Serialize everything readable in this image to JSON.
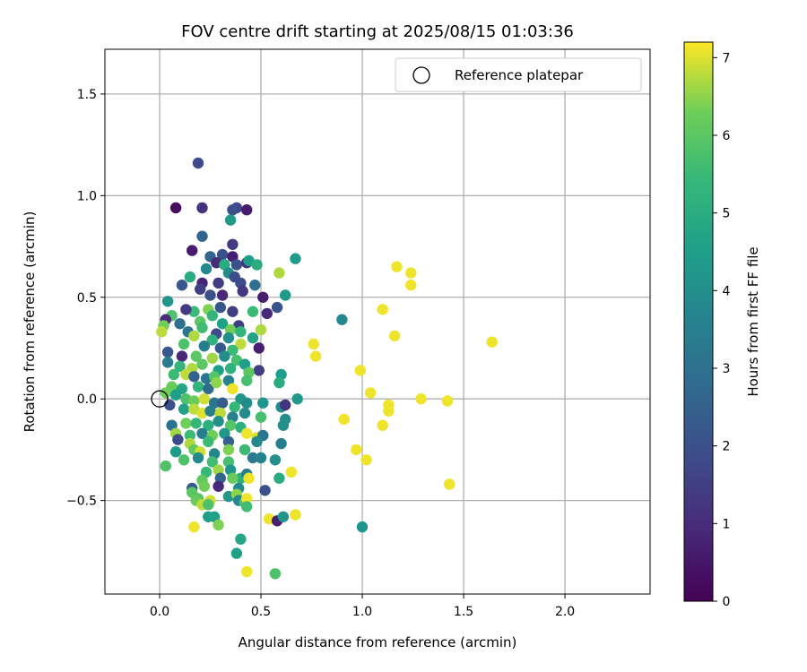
{
  "chart_data": {
    "type": "scatter",
    "title": "FOV centre drift starting at 2025/08/15 01:03:36",
    "xlabel": "Angular distance from reference (arcmin)",
    "ylabel": "Rotation from reference (arcmin)",
    "xlim": [
      -0.27,
      2.42
    ],
    "ylim": [
      -0.96,
      1.72
    ],
    "xticks": [
      0.0,
      0.5,
      1.0,
      1.5,
      2.0
    ],
    "xtick_labels": [
      "0.0",
      "0.5",
      "1.0",
      "1.5",
      "2.0"
    ],
    "yticks": [
      -0.5,
      0.0,
      0.5,
      1.0,
      1.5
    ],
    "ytick_labels": [
      "−0.5",
      "0.0",
      "0.5",
      "1.0",
      "1.5"
    ],
    "grid": true,
    "legend": {
      "placement": "top-right",
      "entries": [
        "Reference platepar"
      ]
    },
    "reference_point": {
      "x": 0.0,
      "y": 0.0,
      "label": "Reference platepar"
    },
    "colorbar": {
      "label": "Hours from first FF file",
      "colormap": "viridis",
      "range": [
        0,
        7.2
      ],
      "ticks": [
        0,
        1,
        2,
        3,
        4,
        5,
        6,
        7
      ],
      "tick_labels": [
        "0",
        "1",
        "2",
        "3",
        "4",
        "5",
        "6",
        "7"
      ]
    },
    "points": [
      [
        0.19,
        1.16,
        1.8
      ],
      [
        0.08,
        0.94,
        0.3
      ],
      [
        0.21,
        0.94,
        1.2
      ],
      [
        0.38,
        0.94,
        1.8
      ],
      [
        0.36,
        0.93,
        2.0
      ],
      [
        0.43,
        0.93,
        0.6
      ],
      [
        0.35,
        0.88,
        4.3
      ],
      [
        0.21,
        0.8,
        2.6
      ],
      [
        0.16,
        0.73,
        0.6
      ],
      [
        0.36,
        0.76,
        1.4
      ],
      [
        0.31,
        0.71,
        2.0
      ],
      [
        0.25,
        0.7,
        2.6
      ],
      [
        0.36,
        0.7,
        0.7
      ],
      [
        0.67,
        0.69,
        4.4
      ],
      [
        0.28,
        0.67,
        1.0
      ],
      [
        0.38,
        0.66,
        2.0
      ],
      [
        0.32,
        0.66,
        5.0
      ],
      [
        0.43,
        0.67,
        1.2
      ],
      [
        0.44,
        0.68,
        4.5
      ],
      [
        0.48,
        0.66,
        5.0
      ],
      [
        0.23,
        0.64,
        3.8
      ],
      [
        0.59,
        0.62,
        6.7
      ],
      [
        0.15,
        0.6,
        5.0
      ],
      [
        0.34,
        0.62,
        3.9
      ],
      [
        0.37,
        0.6,
        1.9
      ],
      [
        0.21,
        0.57,
        0.8
      ],
      [
        0.29,
        0.57,
        1.4
      ],
      [
        0.11,
        0.56,
        2.2
      ],
      [
        0.2,
        0.54,
        1.5
      ],
      [
        0.4,
        0.57,
        1.8
      ],
      [
        0.47,
        0.56,
        3.0
      ],
      [
        0.62,
        0.51,
        4.4
      ],
      [
        0.25,
        0.51,
        2.0
      ],
      [
        0.31,
        0.51,
        0.9
      ],
      [
        0.41,
        0.53,
        1.3
      ],
      [
        0.51,
        0.5,
        0.7
      ],
      [
        0.04,
        0.48,
        4.2
      ],
      [
        0.17,
        0.43,
        5.5
      ],
      [
        0.24,
        0.44,
        6.4
      ],
      [
        0.3,
        0.45,
        2.2
      ],
      [
        0.36,
        0.43,
        1.5
      ],
      [
        0.53,
        0.42,
        0.9
      ],
      [
        0.58,
        0.45,
        2.1
      ],
      [
        0.46,
        0.43,
        5.5
      ],
      [
        0.06,
        0.41,
        5.8
      ],
      [
        0.03,
        0.39,
        1.0
      ],
      [
        0.13,
        0.44,
        1.4
      ],
      [
        0.26,
        0.41,
        5.3
      ],
      [
        0.1,
        0.37,
        3.0
      ],
      [
        0.2,
        0.38,
        6.0
      ],
      [
        0.31,
        0.37,
        4.6
      ],
      [
        0.39,
        0.36,
        1.5
      ],
      [
        0.02,
        0.36,
        6.3
      ],
      [
        0.01,
        0.33,
        6.8
      ],
      [
        0.14,
        0.33,
        3.2
      ],
      [
        0.21,
        0.35,
        5.6
      ],
      [
        0.28,
        0.32,
        1.8
      ],
      [
        0.35,
        0.34,
        6.3
      ],
      [
        0.4,
        0.33,
        5.3
      ],
      [
        0.5,
        0.34,
        6.7
      ],
      [
        0.9,
        0.39,
        3.8
      ],
      [
        0.17,
        0.31,
        6.7
      ],
      [
        0.26,
        0.29,
        5.2
      ],
      [
        0.34,
        0.3,
        4.0
      ],
      [
        0.4,
        0.27,
        6.8
      ],
      [
        0.46,
        0.3,
        4.7
      ],
      [
        0.49,
        0.25,
        0.7
      ],
      [
        0.12,
        0.27,
        5.8
      ],
      [
        0.22,
        0.26,
        3.5
      ],
      [
        0.3,
        0.25,
        2.2
      ],
      [
        0.36,
        0.24,
        5.5
      ],
      [
        0.76,
        0.27,
        7.1
      ],
      [
        0.77,
        0.21,
        7.1
      ],
      [
        1.1,
        0.44,
        7.1
      ],
      [
        1.17,
        0.65,
        7.1
      ],
      [
        1.24,
        0.62,
        7.1
      ],
      [
        1.24,
        0.56,
        7.1
      ],
      [
        1.16,
        0.31,
        7.1
      ],
      [
        1.64,
        0.28,
        7.1
      ],
      [
        0.04,
        0.23,
        2.2
      ],
      [
        0.11,
        0.21,
        0.9
      ],
      [
        0.18,
        0.21,
        6.0
      ],
      [
        0.26,
        0.2,
        6.6
      ],
      [
        0.32,
        0.21,
        4.0
      ],
      [
        0.38,
        0.19,
        5.7
      ],
      [
        0.42,
        0.17,
        4.5
      ],
      [
        0.49,
        0.14,
        1.5
      ],
      [
        0.04,
        0.18,
        3.4
      ],
      [
        0.1,
        0.16,
        5.3
      ],
      [
        0.16,
        0.15,
        6.7
      ],
      [
        0.21,
        0.17,
        6.0
      ],
      [
        0.29,
        0.14,
        4.5
      ],
      [
        0.35,
        0.15,
        5.2
      ],
      [
        0.44,
        0.13,
        6.0
      ],
      [
        0.6,
        0.12,
        4.5
      ],
      [
        0.99,
        0.14,
        7.1
      ],
      [
        0.07,
        0.12,
        5.5
      ],
      [
        0.13,
        0.12,
        6.8
      ],
      [
        0.17,
        0.11,
        2.5
      ],
      [
        0.23,
        0.1,
        3.2
      ],
      [
        0.27,
        0.11,
        5.9
      ],
      [
        0.34,
        0.09,
        3.6
      ],
      [
        0.43,
        0.09,
        5.7
      ],
      [
        0.59,
        0.08,
        5.0
      ],
      [
        0.06,
        0.06,
        6.2
      ],
      [
        0.11,
        0.05,
        4.8
      ],
      [
        0.19,
        0.06,
        5.3
      ],
      [
        0.24,
        0.05,
        2.8
      ],
      [
        0.28,
        0.08,
        6.5
      ],
      [
        0.36,
        0.05,
        7.1
      ],
      [
        0.4,
        0.0,
        4.3
      ],
      [
        0.51,
        -0.02,
        4.2
      ],
      [
        0.68,
        0.0,
        4.3
      ],
      [
        1.04,
        0.03,
        7.1
      ],
      [
        1.29,
        0.0,
        7.1
      ],
      [
        1.42,
        -0.01,
        7.1
      ],
      [
        0.03,
        0.03,
        6.3
      ],
      [
        0.08,
        0.02,
        4.5
      ],
      [
        0.13,
        0.0,
        5.8
      ],
      [
        0.17,
        -0.01,
        6.2
      ],
      [
        0.22,
        0.0,
        6.9
      ],
      [
        0.27,
        -0.02,
        3.2
      ],
      [
        0.31,
        -0.02,
        2.3
      ],
      [
        0.37,
        -0.04,
        5.4
      ],
      [
        0.43,
        -0.02,
        3.9
      ],
      [
        0.6,
        -0.04,
        4.0
      ],
      [
        0.62,
        -0.03,
        1.2
      ],
      [
        1.13,
        -0.03,
        7.1
      ],
      [
        1.13,
        -0.06,
        7.1
      ],
      [
        0.05,
        -0.03,
        2.0
      ],
      [
        0.12,
        -0.05,
        4.6
      ],
      [
        0.17,
        -0.05,
        6.8
      ],
      [
        0.21,
        -0.07,
        7.0
      ],
      [
        0.25,
        -0.06,
        3.5
      ],
      [
        0.3,
        -0.07,
        6.8
      ],
      [
        0.36,
        -0.09,
        3.5
      ],
      [
        0.42,
        -0.07,
        3.9
      ],
      [
        0.5,
        -0.09,
        5.7
      ],
      [
        0.62,
        -0.1,
        4.0
      ],
      [
        0.91,
        -0.1,
        7.1
      ],
      [
        0.06,
        -0.13,
        3.0
      ],
      [
        0.13,
        -0.12,
        6.3
      ],
      [
        0.18,
        -0.12,
        5.4
      ],
      [
        0.24,
        -0.13,
        5.1
      ],
      [
        0.29,
        -0.11,
        4.0
      ],
      [
        0.35,
        -0.13,
        5.9
      ],
      [
        0.4,
        -0.14,
        5.1
      ],
      [
        0.61,
        -0.13,
        4.0
      ],
      [
        1.1,
        -0.13,
        7.1
      ],
      [
        0.08,
        -0.17,
        6.6
      ],
      [
        0.15,
        -0.18,
        5.5
      ],
      [
        0.21,
        -0.17,
        3.5
      ],
      [
        0.26,
        -0.18,
        6.3
      ],
      [
        0.32,
        -0.17,
        4.3
      ],
      [
        0.43,
        -0.17,
        7.1
      ],
      [
        0.48,
        -0.19,
        7.0
      ],
      [
        0.51,
        -0.18,
        3.2
      ],
      [
        0.09,
        -0.2,
        1.8
      ],
      [
        0.15,
        -0.22,
        6.7
      ],
      [
        0.24,
        -0.21,
        5.5
      ],
      [
        0.34,
        -0.21,
        2.5
      ],
      [
        0.48,
        -0.21,
        3.8
      ],
      [
        0.6,
        -0.22,
        3.5
      ],
      [
        0.97,
        -0.25,
        7.1
      ],
      [
        0.08,
        -0.26,
        4.4
      ],
      [
        0.17,
        -0.25,
        6.1
      ],
      [
        0.2,
        -0.26,
        6.9
      ],
      [
        0.27,
        -0.27,
        3.7
      ],
      [
        0.34,
        -0.25,
        6.4
      ],
      [
        0.42,
        -0.25,
        5.5
      ],
      [
        0.12,
        -0.3,
        5.8
      ],
      [
        0.19,
        -0.29,
        3.8
      ],
      [
        0.26,
        -0.31,
        5.6
      ],
      [
        0.34,
        -0.31,
        5.7
      ],
      [
        0.46,
        -0.29,
        3.3
      ],
      [
        0.5,
        -0.29,
        3.6
      ],
      [
        0.57,
        -0.3,
        4.0
      ],
      [
        0.03,
        -0.33,
        5.8
      ],
      [
        1.02,
        -0.3,
        7.1
      ],
      [
        0.23,
        -0.36,
        5.4
      ],
      [
        0.29,
        -0.35,
        6.6
      ],
      [
        0.35,
        -0.35,
        4.2
      ],
      [
        0.4,
        -0.39,
        5.1
      ],
      [
        0.43,
        -0.37,
        3.5
      ],
      [
        0.59,
        -0.39,
        5.0
      ],
      [
        0.65,
        -0.36,
        7.1
      ],
      [
        0.21,
        -0.4,
        6.1
      ],
      [
        0.3,
        -0.39,
        2.6
      ],
      [
        0.36,
        -0.39,
        6.2
      ],
      [
        0.44,
        -0.39,
        7.1
      ],
      [
        1.43,
        -0.42,
        7.1
      ],
      [
        0.16,
        -0.44,
        2.3
      ],
      [
        0.22,
        -0.43,
        6.3
      ],
      [
        0.29,
        -0.43,
        0.9
      ],
      [
        0.39,
        -0.44,
        3.8
      ],
      [
        0.52,
        -0.45,
        2.0
      ],
      [
        0.16,
        -0.46,
        6.0
      ],
      [
        0.19,
        -0.49,
        5.9
      ],
      [
        0.34,
        -0.48,
        4.3
      ],
      [
        0.38,
        -0.47,
        6.5
      ],
      [
        0.18,
        -0.5,
        6.2
      ],
      [
        0.21,
        -0.52,
        6.8
      ],
      [
        0.25,
        -0.5,
        6.9
      ],
      [
        0.39,
        -0.5,
        3.8
      ],
      [
        0.42,
        -0.51,
        5.8
      ],
      [
        0.43,
        -0.49,
        7.1
      ],
      [
        0.24,
        -0.52,
        5.8
      ],
      [
        0.43,
        -0.53,
        5.6
      ],
      [
        0.24,
        -0.58,
        4.5
      ],
      [
        0.27,
        -0.58,
        4.6
      ],
      [
        0.54,
        -0.59,
        7.1
      ],
      [
        0.58,
        -0.6,
        0.7
      ],
      [
        0.61,
        -0.58,
        4.2
      ],
      [
        0.67,
        -0.57,
        7.1
      ],
      [
        0.17,
        -0.63,
        7.1
      ],
      [
        0.29,
        -0.62,
        6.4
      ],
      [
        1.0,
        -0.63,
        4.2
      ],
      [
        0.4,
        -0.69,
        4.8
      ],
      [
        0.38,
        -0.76,
        4.6
      ],
      [
        0.43,
        -0.85,
        7.1
      ],
      [
        0.57,
        -0.86,
        5.8
      ]
    ]
  }
}
